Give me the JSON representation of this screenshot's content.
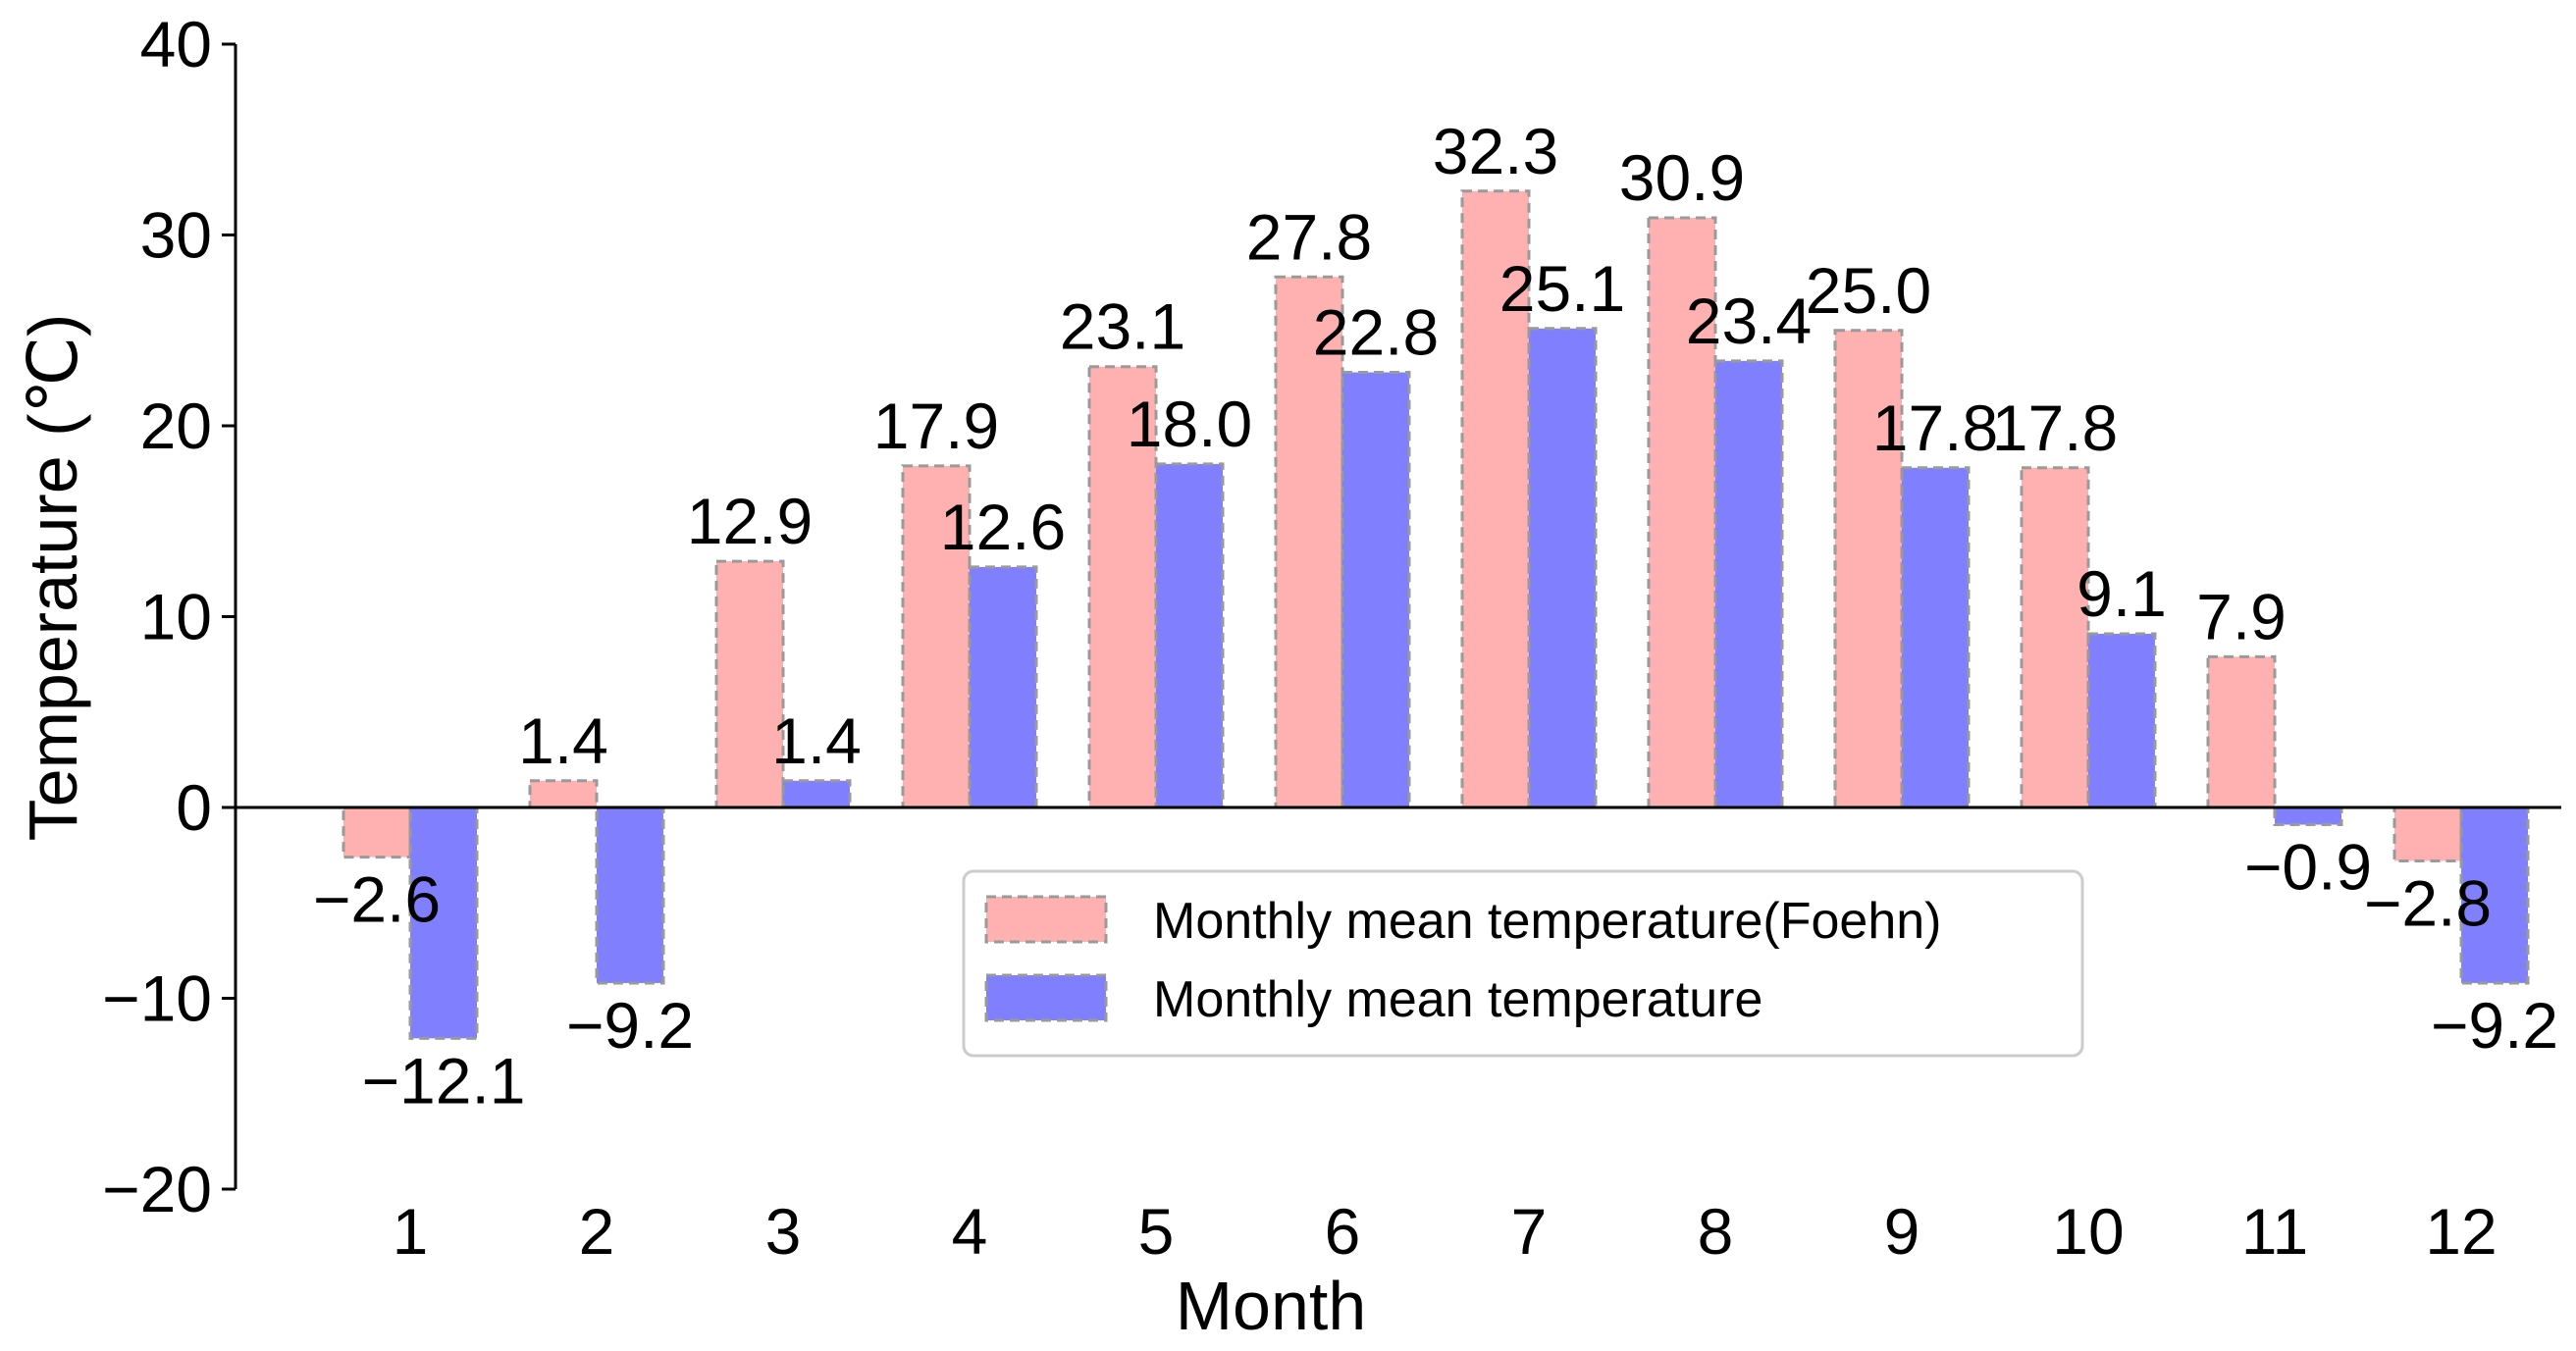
{
  "chart_data": {
    "type": "bar",
    "title": "",
    "xlabel": "Month",
    "ylabel": "Temperature (℃)",
    "ylim": [
      -20,
      40
    ],
    "yticks": [
      -20,
      -10,
      0,
      10,
      20,
      30,
      40
    ],
    "ytick_labels": [
      "−20",
      "−10",
      "0",
      "10",
      "20",
      "30",
      "40"
    ],
    "categories": [
      "1",
      "2",
      "3",
      "4",
      "5",
      "6",
      "7",
      "8",
      "9",
      "10",
      "11",
      "12"
    ],
    "series": [
      {
        "name": "Monthly mean temperature(Foehn)",
        "color": "#ffb0b0",
        "values": [
          -2.6,
          1.4,
          12.9,
          17.9,
          23.1,
          27.8,
          32.3,
          30.9,
          25.0,
          17.8,
          7.9,
          -2.8
        ],
        "labels": [
          "−2.6",
          "1.4",
          "12.9",
          "17.9",
          "23.1",
          "27.8",
          "32.3",
          "30.9",
          "25.0",
          "17.8",
          "7.9",
          "−2.8"
        ]
      },
      {
        "name": "Monthly mean temperature",
        "color": "#8080ff",
        "values": [
          -12.1,
          -9.2,
          1.4,
          12.6,
          18.0,
          22.8,
          25.1,
          23.4,
          17.8,
          9.1,
          -0.9,
          -9.2
        ],
        "labels": [
          "−12.1",
          "−9.2",
          "1.4",
          "12.6",
          "18.0",
          "22.8",
          "25.1",
          "23.4",
          "17.8",
          "9.1",
          "−0.9",
          "−9.2"
        ]
      }
    ],
    "grid": false,
    "legend_position": "center-right"
  }
}
